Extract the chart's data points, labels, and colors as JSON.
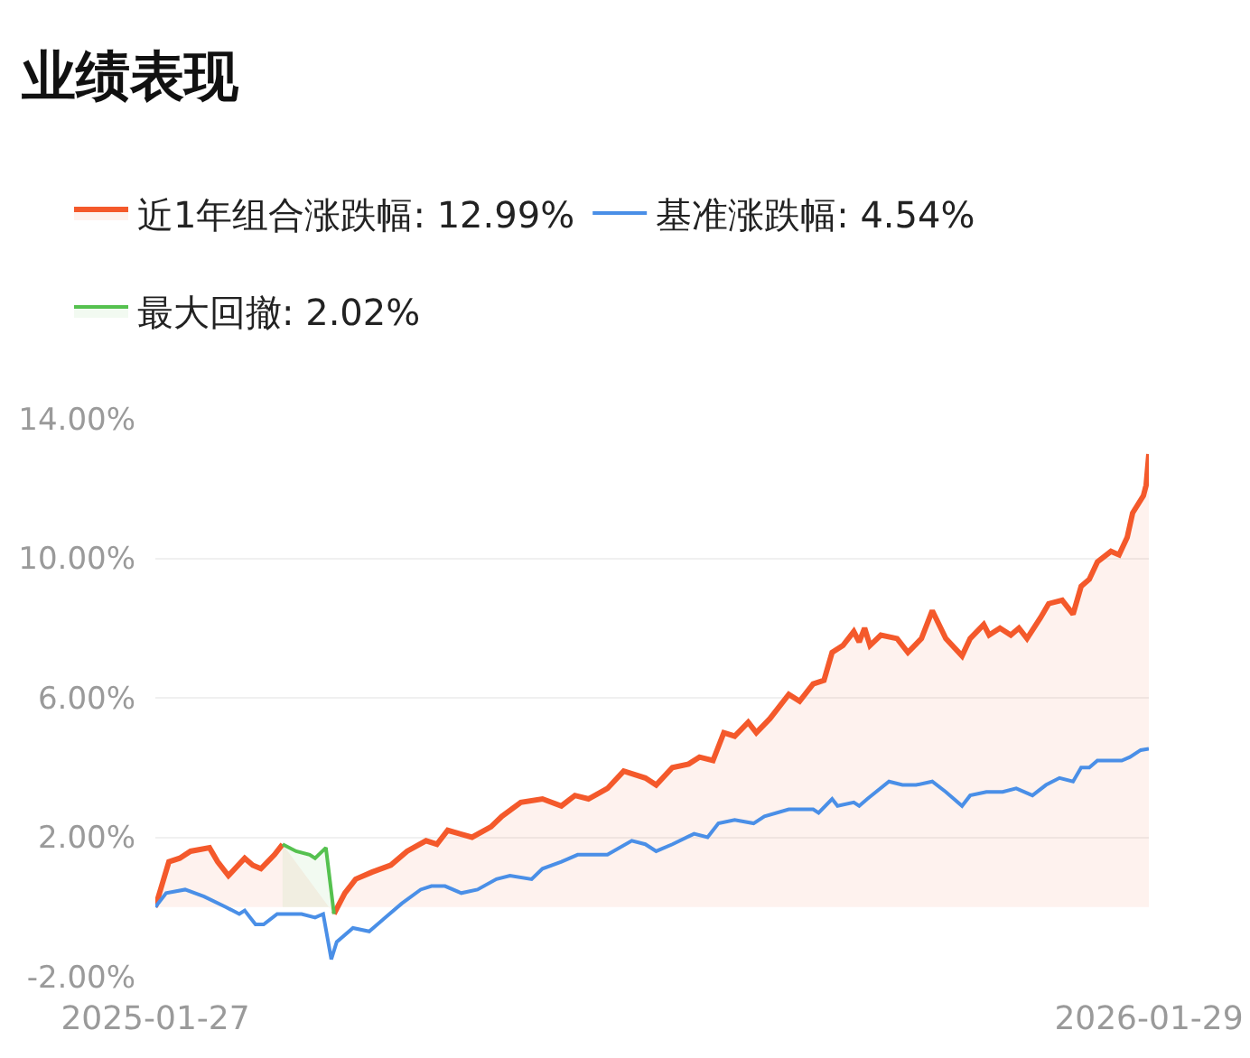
{
  "chart_data": {
    "type": "line",
    "title": "业绩表现",
    "xlim": [
      "2025-01-27",
      "2026-01-29"
    ],
    "xticks": [
      "2025-01-27",
      "2026-01-29"
    ],
    "ylim": [
      -2,
      14
    ],
    "yticks": [
      {
        "value": -2,
        "label": "-2.00%"
      },
      {
        "value": 2,
        "label": "2.00%"
      },
      {
        "value": 6,
        "label": "6.00%"
      },
      {
        "value": 10,
        "label": "10.00%"
      },
      {
        "value": 14,
        "label": "14.00%"
      }
    ],
    "grid": "y",
    "legend": "top left",
    "series": [
      {
        "name": "近1年组合涨跌幅: 12.99%",
        "type": "area",
        "color": "#f4592b",
        "x": [
          "2025-01-27",
          "2025-02-01",
          "2025-02-05",
          "2025-02-09",
          "2025-02-16",
          "2025-02-19",
          "2025-02-23",
          "2025-03-01",
          "2025-03-04",
          "2025-03-07",
          "2025-03-12",
          "2025-03-15",
          "2025-03-25",
          "2025-04-03",
          "2025-04-07",
          "2025-04-11",
          "2025-04-17",
          "2025-04-24",
          "2025-04-30",
          "2025-05-07",
          "2025-05-11",
          "2025-05-15",
          "2025-05-24",
          "2025-05-31",
          "2025-06-04",
          "2025-06-11",
          "2025-06-19",
          "2025-06-26",
          "2025-07-01",
          "2025-07-06",
          "2025-07-13",
          "2025-07-19",
          "2025-07-27",
          "2025-07-31",
          "2025-08-06",
          "2025-08-12",
          "2025-08-16",
          "2025-08-21",
          "2025-08-25",
          "2025-08-29",
          "2025-09-03",
          "2025-09-06",
          "2025-09-11",
          "2025-09-18",
          "2025-09-22",
          "2025-09-27",
          "2025-10-01",
          "2025-10-04",
          "2025-10-08",
          "2025-10-12",
          "2025-10-14",
          "2025-10-16",
          "2025-10-18",
          "2025-10-22",
          "2025-10-28",
          "2025-11-01",
          "2025-11-06",
          "2025-11-10",
          "2025-11-15",
          "2025-11-21",
          "2025-11-24",
          "2025-11-29",
          "2025-12-01",
          "2025-12-05",
          "2025-12-09",
          "2025-12-12",
          "2025-12-15",
          "2025-12-20",
          "2025-12-23",
          "2025-12-28",
          "2026-01-01",
          "2026-01-04",
          "2026-01-07",
          "2026-01-10",
          "2026-01-15",
          "2026-01-18",
          "2026-01-21",
          "2026-01-23",
          "2026-01-27",
          "2026-01-28",
          "2026-01-29"
        ],
        "values": [
          0.0,
          1.3,
          1.4,
          1.6,
          1.7,
          1.3,
          0.9,
          1.4,
          1.2,
          1.1,
          1.5,
          1.8,
          null,
          -0.2,
          0.4,
          0.8,
          1.0,
          1.2,
          1.6,
          1.9,
          1.8,
          2.2,
          2.0,
          2.3,
          2.6,
          3.0,
          3.1,
          2.9,
          3.2,
          3.1,
          3.4,
          3.9,
          3.7,
          3.5,
          4.0,
          4.1,
          4.3,
          4.2,
          5.0,
          4.9,
          5.3,
          5.0,
          5.4,
          6.1,
          5.9,
          6.4,
          6.5,
          7.3,
          7.5,
          7.9,
          7.6,
          8.0,
          7.5,
          7.8,
          7.7,
          7.3,
          7.7,
          8.5,
          7.7,
          7.2,
          7.7,
          8.1,
          7.8,
          8.0,
          7.8,
          8.0,
          7.7,
          8.3,
          8.7,
          8.8,
          8.4,
          9.2,
          9.4,
          9.9,
          10.2,
          10.1,
          10.6,
          11.3,
          11.8,
          12.1,
          12.99
        ]
      },
      {
        "name": "基准涨跌幅: 4.54%",
        "color": "#4a8fe7",
        "x": [
          "2025-01-27",
          "2025-01-31",
          "2025-02-07",
          "2025-02-14",
          "2025-02-22",
          "2025-02-27",
          "2025-03-01",
          "2025-03-05",
          "2025-03-08",
          "2025-03-13",
          "2025-03-18",
          "2025-03-22",
          "2025-03-27",
          "2025-03-30",
          "2025-04-02",
          "2025-04-04",
          "2025-04-10",
          "2025-04-16",
          "2025-04-22",
          "2025-04-28",
          "2025-05-05",
          "2025-05-09",
          "2025-05-14",
          "2025-05-20",
          "2025-05-26",
          "2025-06-02",
          "2025-06-07",
          "2025-06-15",
          "2025-06-19",
          "2025-06-26",
          "2025-07-02",
          "2025-07-09",
          "2025-07-13",
          "2025-07-22",
          "2025-07-27",
          "2025-07-31",
          "2025-08-06",
          "2025-08-14",
          "2025-08-19",
          "2025-08-23",
          "2025-08-29",
          "2025-09-05",
          "2025-09-09",
          "2025-09-18",
          "2025-09-27",
          "2025-09-29",
          "2025-10-04",
          "2025-10-06",
          "2025-10-12",
          "2025-10-14",
          "2025-10-17",
          "2025-10-25",
          "2025-10-30",
          "2025-11-04",
          "2025-11-10",
          "2025-11-15",
          "2025-11-21",
          "2025-11-24",
          "2025-11-30",
          "2025-12-06",
          "2025-12-11",
          "2025-12-17",
          "2025-12-22",
          "2025-12-27",
          "2026-01-01",
          "2026-01-04",
          "2026-01-07",
          "2026-01-10",
          "2026-01-19",
          "2026-01-22",
          "2026-01-26",
          "2026-01-29"
        ],
        "values": [
          0.0,
          0.4,
          0.5,
          0.3,
          0.0,
          -0.2,
          -0.1,
          -0.5,
          -0.5,
          -0.2,
          -0.2,
          -0.2,
          -0.3,
          -0.2,
          -1.5,
          -1.0,
          -0.6,
          -0.7,
          -0.3,
          0.1,
          0.5,
          0.6,
          0.6,
          0.4,
          0.5,
          0.8,
          0.9,
          0.8,
          1.1,
          1.3,
          1.5,
          1.5,
          1.5,
          1.9,
          1.8,
          1.6,
          1.8,
          2.1,
          2.0,
          2.4,
          2.5,
          2.4,
          2.6,
          2.8,
          2.8,
          2.7,
          3.1,
          2.9,
          3.0,
          2.9,
          3.1,
          3.6,
          3.5,
          3.5,
          3.6,
          3.3,
          2.9,
          3.2,
          3.3,
          3.3,
          3.4,
          3.2,
          3.5,
          3.7,
          3.6,
          4.0,
          4.0,
          4.2,
          4.2,
          4.3,
          4.5,
          4.54
        ]
      },
      {
        "name": "最大回撤: 2.02%",
        "type": "area",
        "color": "#55c14f",
        "x": [
          "2025-03-15",
          "2025-03-20",
          "2025-03-25",
          "2025-03-27",
          "2025-03-31",
          "2025-04-03"
        ],
        "values": [
          1.8,
          1.6,
          1.5,
          1.4,
          1.7,
          -0.2
        ]
      }
    ]
  }
}
